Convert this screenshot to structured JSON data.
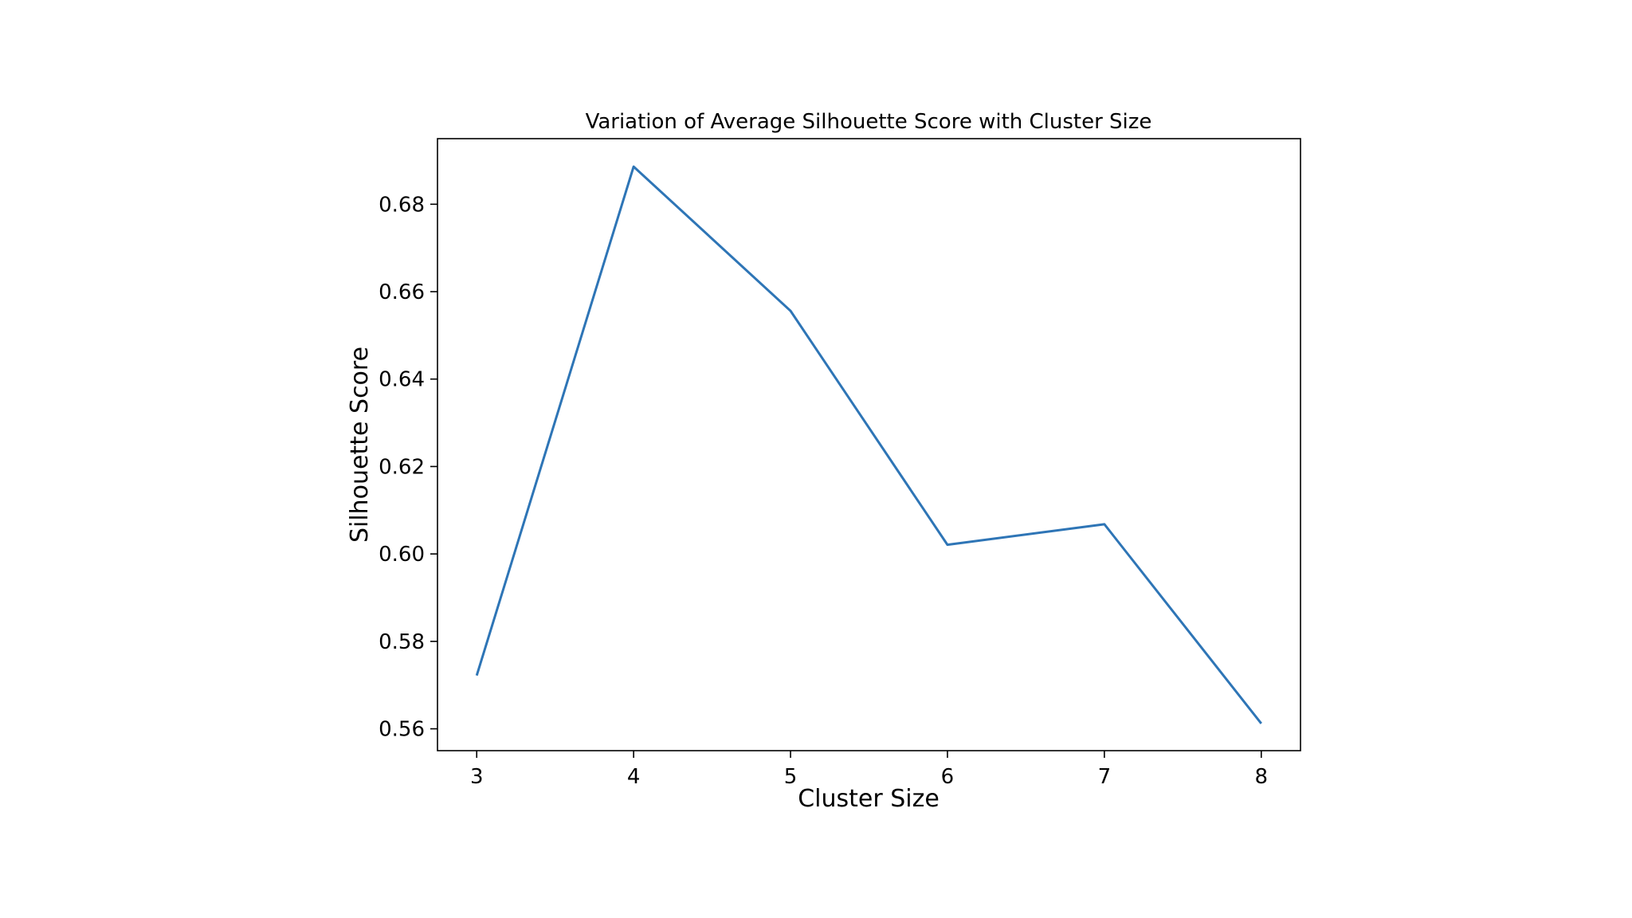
{
  "chart_data": {
    "type": "line",
    "title": "Variation of Average Silhouette Score with Cluster Size",
    "xlabel": "Cluster Size",
    "ylabel": "Silhouette Score",
    "x": [
      3,
      4,
      5,
      6,
      7,
      8
    ],
    "series": [
      {
        "values": [
          0.5722,
          0.6886,
          0.6556,
          0.6021,
          0.6068,
          0.5612
        ]
      }
    ],
    "xlim": [
      2.75,
      8.25
    ],
    "ylim": [
      0.555,
      0.695
    ],
    "xticks": [
      3,
      4,
      5,
      6,
      7,
      8
    ],
    "xtick_labels": [
      "3",
      "4",
      "5",
      "6",
      "7",
      "8"
    ],
    "yticks": [
      0.56,
      0.58,
      0.6,
      0.62,
      0.64,
      0.66,
      0.68
    ],
    "ytick_labels": [
      "0.56",
      "0.58",
      "0.60",
      "0.62",
      "0.64",
      "0.66",
      "0.68"
    ],
    "grid": false,
    "line_color": "#2e75b6"
  }
}
